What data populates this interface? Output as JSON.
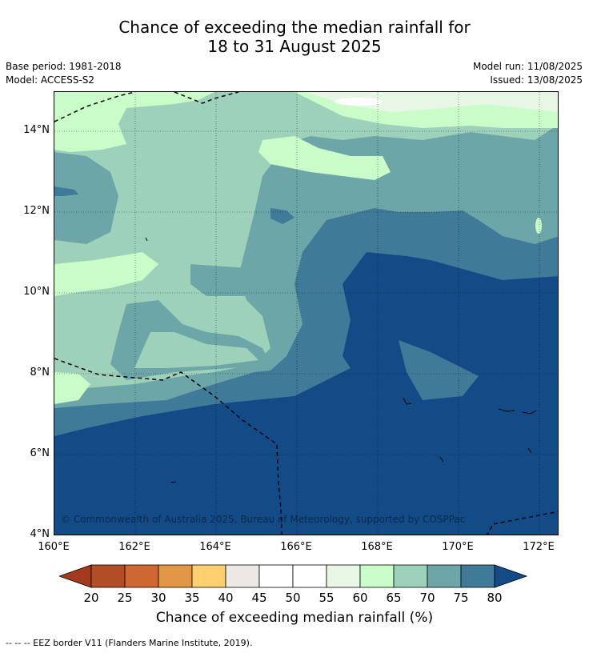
{
  "title": {
    "line1": "Chance of exceeding the median rainfall for",
    "line2": "18 to 31 August 2025"
  },
  "meta": {
    "base_period": "Base period: 1981-2018",
    "model": "Model: ACCESS-S2",
    "model_run": "Model run: 11/08/2025",
    "issued": "Issued: 13/08/2025"
  },
  "map": {
    "copyright": "© Commonwealth of Australia 2025, Bureau of Meteorology, supported by COSPPac",
    "lat_labels": [
      "14°N",
      "12°N",
      "10°N",
      "8°N",
      "6°N",
      "4°N"
    ],
    "lon_labels": [
      "160°E",
      "162°E",
      "164°E",
      "166°E",
      "168°E",
      "170°E",
      "172°E"
    ],
    "extent": {
      "lon": [
        160,
        172.5
      ],
      "lat": [
        4,
        15
      ]
    }
  },
  "colorbar": {
    "label": "Chance of exceeding median rainfall (%)",
    "ticks": [
      "20",
      "25",
      "30",
      "35",
      "40",
      "45",
      "50",
      "55",
      "60",
      "65",
      "70",
      "75",
      "80"
    ],
    "colors": [
      "#a33a1d",
      "#b24d26",
      "#cf6732",
      "#e29746",
      "#fdcf6e",
      "#ece8e4",
      "#ffffff",
      "#ffffff",
      "#e8f6e6",
      "#c9fcc8",
      "#9dd1ba",
      "#6da6a8",
      "#3f7a99",
      "#134b86"
    ]
  },
  "footer": "-- -- -- EEZ border V11 (Flanders Marine Institute, 2019)."
}
